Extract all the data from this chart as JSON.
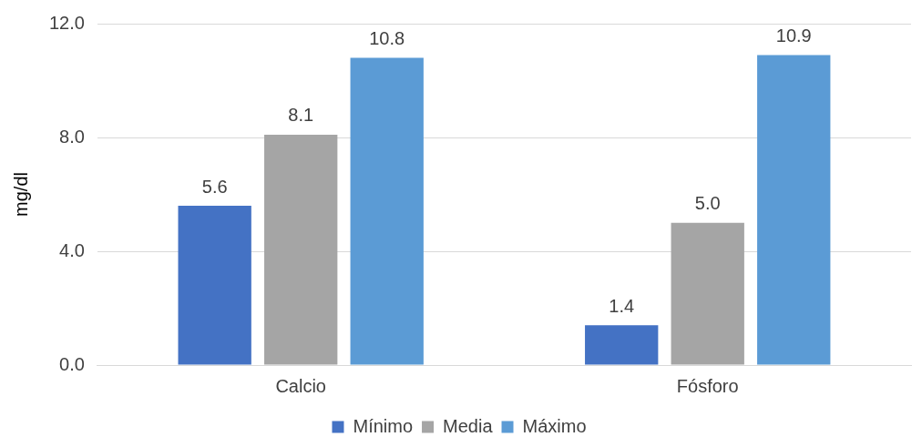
{
  "chart_data": {
    "type": "bar",
    "ylabel": "mg/dl",
    "categories": [
      "Calcio",
      "Fósforo"
    ],
    "series": [
      {
        "name": "Mínimo",
        "color": "#4472c4",
        "values": [
          5.6,
          1.4
        ],
        "value_labels": [
          "5.6",
          "1.4"
        ]
      },
      {
        "name": "Media",
        "color": "#a5a5a5",
        "values": [
          8.1,
          5.0
        ],
        "value_labels": [
          "8.1",
          "5.0"
        ]
      },
      {
        "name": "Máximo",
        "color": "#5b9bd5",
        "values": [
          10.8,
          10.9
        ],
        "value_labels": [
          "10.8",
          "10.9"
        ]
      }
    ],
    "ylim": [
      0,
      12
    ],
    "yticks": [
      {
        "value": 0,
        "label": "0.0"
      },
      {
        "value": 4,
        "label": "4.0"
      },
      {
        "value": 8,
        "label": "8.0"
      },
      {
        "value": 12,
        "label": "12.0"
      }
    ],
    "grid": "y",
    "legend": "bottom"
  }
}
